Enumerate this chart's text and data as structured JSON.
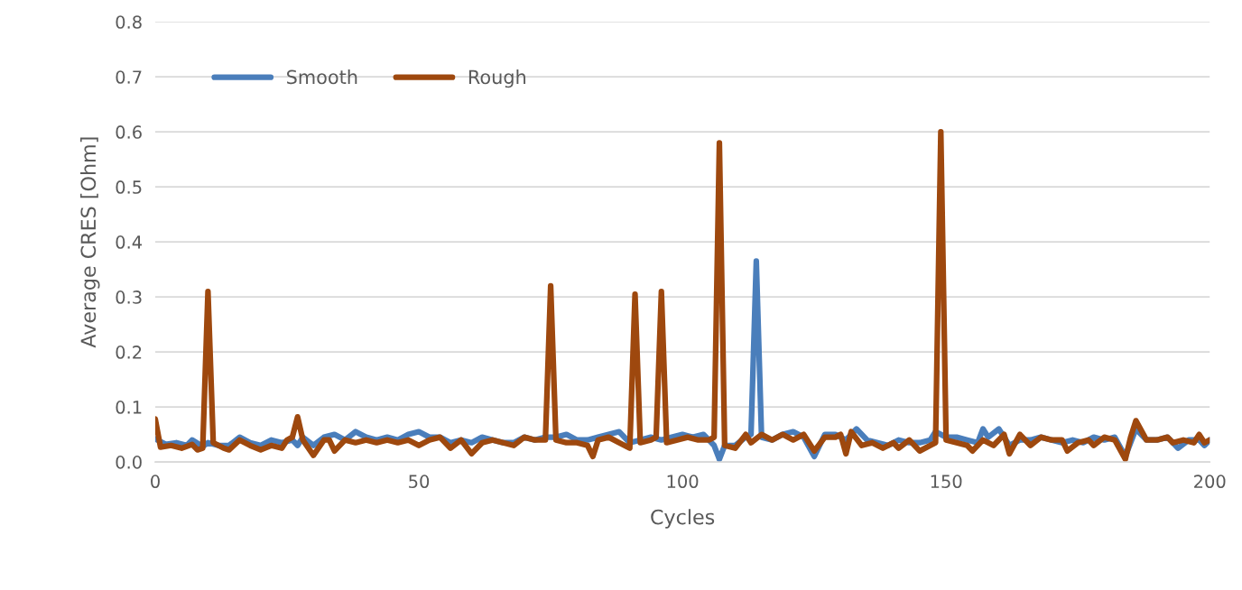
{
  "chart_data": {
    "type": "line",
    "xlabel": "Cycles",
    "ylabel": "Average CRES [Ohm]",
    "xlim": [
      0,
      200
    ],
    "xticks": [
      0,
      50,
      100,
      150,
      200
    ],
    "ylim": [
      0,
      0.8
    ],
    "yticks": [
      {
        "value": 0,
        "label": "0.0"
      },
      {
        "value": 0.1,
        "label": "0.1"
      },
      {
        "value": 0.2,
        "label": "0.2"
      },
      {
        "value": 0.3,
        "label": "0.3"
      },
      {
        "value": 0.4,
        "label": "0.4"
      },
      {
        "value": 0.5,
        "label": "0.5"
      },
      {
        "value": 0.6,
        "label": "0.6"
      },
      {
        "value": 0.7,
        "label": "0.7"
      },
      {
        "value": 0.8,
        "label": "0.8"
      }
    ],
    "grid": "y",
    "legend": "top left",
    "marker": "none",
    "line_style": "solid",
    "series": [
      {
        "name": "Smooth",
        "color": "#4a7ebb",
        "x": [
          0,
          2,
          4,
          6,
          7,
          9,
          10,
          12,
          14,
          16,
          18,
          20,
          22,
          24,
          26,
          27,
          28,
          30,
          32,
          34,
          36,
          38,
          40,
          42,
          44,
          46,
          48,
          50,
          52,
          54,
          56,
          58,
          60,
          62,
          64,
          66,
          68,
          70,
          72,
          74,
          76,
          78,
          80,
          82,
          84,
          86,
          88,
          90,
          92,
          94,
          96,
          98,
          100,
          102,
          104,
          106,
          107,
          108,
          110,
          112,
          113,
          114,
          115,
          117,
          119,
          121,
          123,
          125,
          127,
          129,
          131,
          133,
          135,
          137,
          139,
          141,
          143,
          145,
          147,
          148,
          150,
          152,
          154,
          156,
          157,
          158,
          160,
          162,
          164,
          166,
          168,
          170,
          172,
          174,
          176,
          178,
          180,
          182,
          184,
          186,
          188,
          190,
          192,
          194,
          196,
          198,
          199,
          200
        ],
        "values": [
          0.042,
          0.032,
          0.035,
          0.03,
          0.04,
          0.028,
          0.035,
          0.03,
          0.03,
          0.045,
          0.035,
          0.03,
          0.04,
          0.035,
          0.04,
          0.03,
          0.045,
          0.03,
          0.045,
          0.05,
          0.04,
          0.055,
          0.045,
          0.04,
          0.045,
          0.04,
          0.05,
          0.055,
          0.045,
          0.045,
          0.035,
          0.04,
          0.035,
          0.045,
          0.04,
          0.035,
          0.035,
          0.045,
          0.04,
          0.045,
          0.045,
          0.05,
          0.04,
          0.04,
          0.045,
          0.05,
          0.055,
          0.035,
          0.04,
          0.045,
          0.04,
          0.045,
          0.05,
          0.045,
          0.05,
          0.03,
          0.005,
          0.03,
          0.03,
          0.045,
          0.05,
          0.365,
          0.045,
          0.04,
          0.05,
          0.055,
          0.045,
          0.01,
          0.05,
          0.05,
          0.04,
          0.06,
          0.04,
          0.035,
          0.03,
          0.04,
          0.035,
          0.035,
          0.04,
          0.055,
          0.045,
          0.045,
          0.04,
          0.035,
          0.06,
          0.045,
          0.06,
          0.03,
          0.04,
          0.04,
          0.045,
          0.04,
          0.035,
          0.04,
          0.035,
          0.045,
          0.04,
          0.045,
          0.01,
          0.06,
          0.04,
          0.04,
          0.045,
          0.025,
          0.04,
          0.04,
          0.03,
          0.04
        ]
      },
      {
        "name": "Rough",
        "color": "#9e480e",
        "x": [
          0,
          1,
          3,
          5,
          7,
          8,
          9,
          10,
          11,
          13,
          14,
          16,
          18,
          20,
          22,
          24,
          25,
          26,
          27,
          28,
          30,
          32,
          33,
          34,
          36,
          38,
          40,
          42,
          44,
          46,
          48,
          50,
          52,
          54,
          56,
          58,
          60,
          62,
          64,
          66,
          68,
          70,
          72,
          74,
          75,
          76,
          78,
          80,
          82,
          83,
          84,
          86,
          88,
          90,
          91,
          92,
          94,
          95,
          96,
          97,
          99,
          101,
          103,
          105,
          106,
          107,
          108,
          110,
          112,
          113,
          115,
          117,
          119,
          121,
          123,
          125,
          127,
          129,
          130,
          131,
          132,
          134,
          136,
          138,
          140,
          141,
          143,
          145,
          147,
          148,
          149,
          150,
          152,
          154,
          155,
          157,
          159,
          161,
          162,
          164,
          166,
          168,
          170,
          172,
          173,
          175,
          177,
          178,
          180,
          182,
          184,
          185,
          186,
          188,
          190,
          192,
          193,
          195,
          197,
          198,
          199,
          200
        ],
        "values": [
          0.078,
          0.027,
          0.03,
          0.025,
          0.032,
          0.022,
          0.025,
          0.31,
          0.035,
          0.025,
          0.022,
          0.04,
          0.03,
          0.022,
          0.03,
          0.025,
          0.04,
          0.045,
          0.082,
          0.04,
          0.012,
          0.04,
          0.04,
          0.02,
          0.04,
          0.035,
          0.04,
          0.035,
          0.04,
          0.035,
          0.04,
          0.03,
          0.04,
          0.045,
          0.025,
          0.04,
          0.015,
          0.035,
          0.04,
          0.035,
          0.03,
          0.045,
          0.04,
          0.04,
          0.32,
          0.04,
          0.035,
          0.035,
          0.03,
          0.01,
          0.04,
          0.045,
          0.035,
          0.025,
          0.305,
          0.035,
          0.04,
          0.045,
          0.31,
          0.035,
          0.04,
          0.045,
          0.04,
          0.04,
          0.045,
          0.58,
          0.03,
          0.025,
          0.05,
          0.035,
          0.05,
          0.04,
          0.05,
          0.04,
          0.05,
          0.02,
          0.045,
          0.045,
          0.05,
          0.015,
          0.055,
          0.03,
          0.035,
          0.025,
          0.035,
          0.025,
          0.04,
          0.02,
          0.03,
          0.035,
          0.6,
          0.04,
          0.035,
          0.03,
          0.02,
          0.04,
          0.03,
          0.05,
          0.015,
          0.05,
          0.03,
          0.045,
          0.04,
          0.04,
          0.02,
          0.035,
          0.04,
          0.03,
          0.045,
          0.04,
          0.005,
          0.045,
          0.075,
          0.04,
          0.04,
          0.045,
          0.035,
          0.04,
          0.035,
          0.05,
          0.035,
          0.04
        ]
      }
    ]
  }
}
